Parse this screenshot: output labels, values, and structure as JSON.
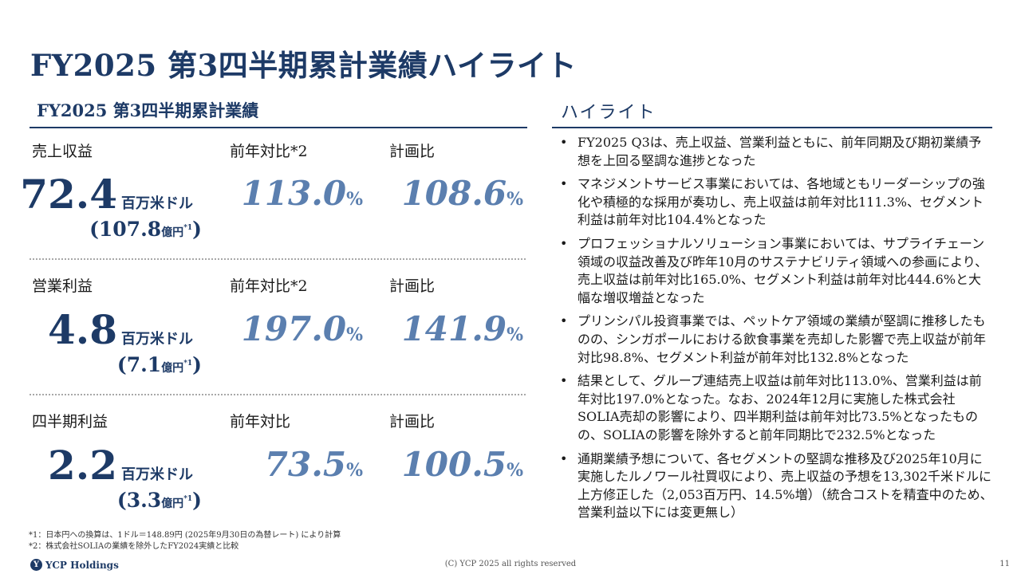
{
  "title": "FY2025 第3四半期累計業績ハイライト",
  "left": {
    "heading": "FY2025 第3四半期累計業績",
    "metrics": [
      {
        "label": "売上収益",
        "value": "72.4",
        "unit": "百万米ドル",
        "yen_value": "(107.8",
        "yen_unit": "億円",
        "yen_note": "*1",
        "yen_close": ")",
        "yoy_label": "前年対比*2",
        "yoy_value": "113.0",
        "plan_label": "計画比",
        "plan_value": "108.6"
      },
      {
        "label": "営業利益",
        "value": "4.8",
        "unit": "百万米ドル",
        "yen_value": "(7.1",
        "yen_unit": "億円",
        "yen_note": "*1",
        "yen_close": ")",
        "yoy_label": "前年対比*2",
        "yoy_value": "197.0",
        "plan_label": "計画比",
        "plan_value": "141.9"
      },
      {
        "label": "四半期利益",
        "value": "2.2",
        "unit": "百万米ドル",
        "yen_value": "(3.3",
        "yen_unit": "億円",
        "yen_note": "*1",
        "yen_close": ")",
        "yoy_label": "前年対比",
        "yoy_value": "73.5",
        "plan_label": "計画比",
        "plan_value": "100.5"
      }
    ],
    "percent_sign": "%",
    "footnotes": [
      "*1：日本円への換算は、1ドル＝148.89円 (2025年9月30日の為替レート) により計算",
      "*2：株式会社SOLIAの業績を除外したFY2024実績と比較"
    ]
  },
  "right": {
    "heading": "ハイライト",
    "bullets": [
      "FY2025 Q3は、売上収益、営業利益ともに、前年同期及び期初業績予想を上回る堅調な進捗となった",
      "マネジメントサービス事業においては、各地域ともリーダーシップの強化や積極的な採用が奏功し、売上収益は前年対比111.3%、セグメント利益は前年対比104.4%となった",
      "プロフェッショナルソリューション事業においては、サプライチェーン領域の収益改善及び昨年10月のサステナビリティ領域への参画により、売上収益は前年対比165.0%、セグメント利益は前年対比444.6%と大幅な増収増益となった",
      "プリンシパル投資事業では、ペットケア領域の業績が堅調に推移したものの、シンガポールにおける飲食事業を売却した影響で売上収益が前年対比98.8%、セグメント利益が前年対比132.8%となった",
      "結果として、グループ連結売上収益は前年対比113.0%、営業利益は前年対比197.0%となった。なお、2024年12月に実施した株式会社SOLIA売却の影響により、四半期利益は前年対比73.5%となったものの、SOLIAの影響を除外すると前年同期比で232.5%となった",
      "通期業績予想について、各セグメントの堅調な推移及び2025年10月に実施したルノワール社買収により、売上収益の予想を13,302千米ドルに上方修正した（2,053百万円、14.5%増）（統合コストを精査中のため、営業利益以下には変更無し）"
    ]
  },
  "footer": {
    "logo_mark": "Y",
    "logo_text": "YCP Holdings",
    "copyright": "(C) YCP 2025 all rights reserved",
    "page_number": "11"
  }
}
